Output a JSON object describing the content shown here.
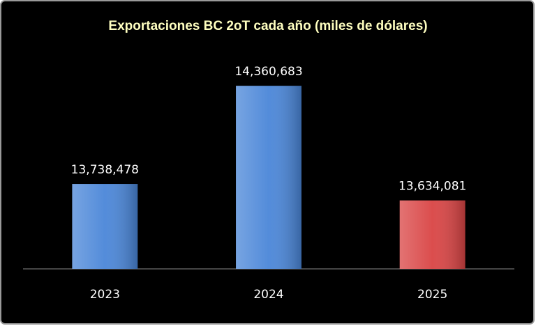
{
  "chart_data": {
    "type": "bar",
    "title": "Exportaciones BC 2oT cada año (miles de dólares)",
    "categories": [
      "2023",
      "2024",
      "2025"
    ],
    "values": [
      13738478,
      14360683,
      13634081
    ],
    "value_labels": [
      "13,738,478",
      "14,360,683",
      "13,634,081"
    ],
    "colors": [
      "#4a86d8",
      "#4a86d8",
      "#d94444"
    ],
    "ylim": [
      13200000,
      14600000
    ]
  }
}
